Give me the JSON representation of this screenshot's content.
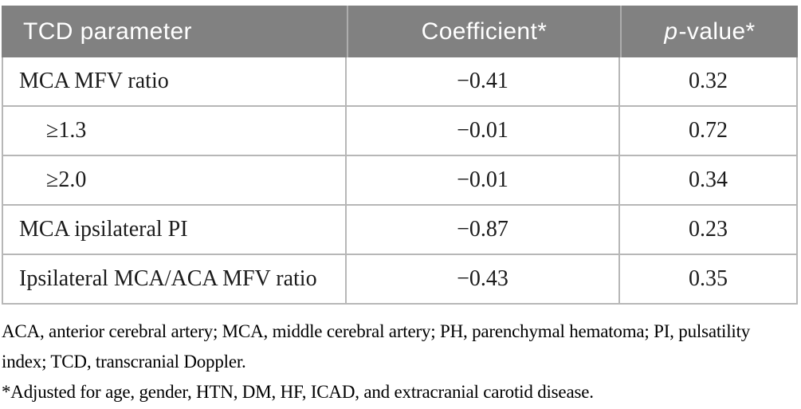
{
  "table": {
    "header": {
      "parameter": "TCD parameter",
      "coefficient": "Coefficient*",
      "p_italic": "p",
      "p_rest": "-value*"
    },
    "rows": [
      {
        "label": "MCA MFV ratio",
        "coefficient": "−0.41",
        "p_value": "0.32"
      },
      {
        "label": "≥1.3",
        "coefficient": "−0.01",
        "p_value": "0.72"
      },
      {
        "label": "≥2.0",
        "coefficient": "−0.01",
        "p_value": "0.34"
      },
      {
        "label": "MCA ipsilateral PI",
        "coefficient": "−0.87",
        "p_value": "0.23"
      },
      {
        "label": "Ipsilateral MCA/ACA MFV ratio",
        "coefficient": "−0.43",
        "p_value": "0.35"
      }
    ]
  },
  "footnotes": {
    "abbreviations": "ACA, anterior cerebral artery; MCA, middle cerebral artery; PH, parenchymal hematoma; PI, pulsatility index; TCD, transcranial Doppler.",
    "adjustment": "*Adjusted for age, gender, HTN, DM, HF, ICAD, and extracranial carotid disease."
  },
  "colors": {
    "header_bg": "#818181",
    "header_text": "#ffffff",
    "border": "#b7b7b7",
    "body_text": "#1b1b1b"
  }
}
